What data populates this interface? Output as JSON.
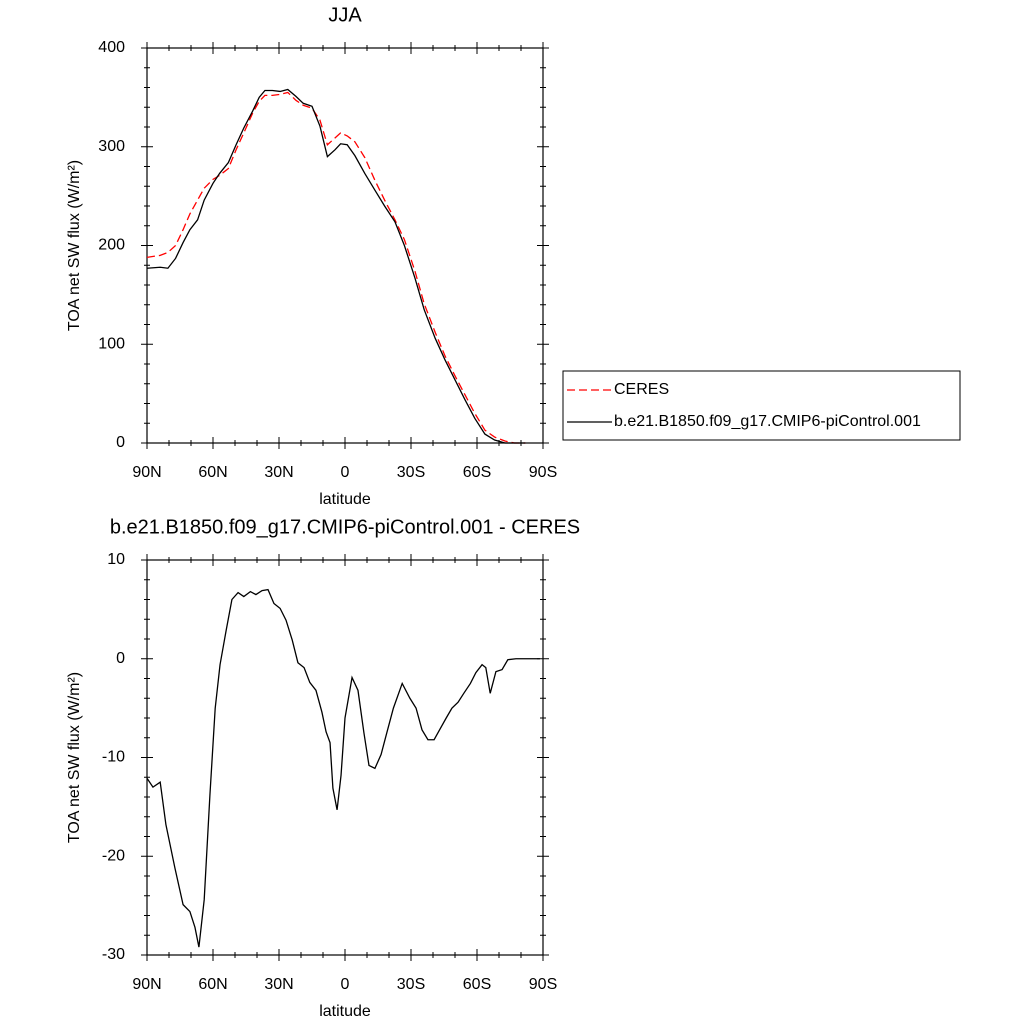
{
  "chart_data": [
    {
      "type": "line",
      "title": "JJA",
      "xlabel": "latitude",
      "ylabel": "TOA net SW flux (W/m²)",
      "xlim": [
        90,
        -90
      ],
      "xticks": [
        {
          "value": 90,
          "label": "90N"
        },
        {
          "value": 60,
          "label": "60N"
        },
        {
          "value": 30,
          "label": "30N"
        },
        0,
        {
          "value": -30,
          "label": "30S"
        },
        {
          "value": -60,
          "label": "60S"
        },
        {
          "value": -90,
          "label": "90S"
        }
      ],
      "ylim": [
        0,
        400
      ],
      "yticks": [
        0,
        100,
        200,
        300,
        400
      ],
      "legend": "right",
      "x": [
        90,
        84,
        80.5,
        77,
        73.6,
        70.5,
        67,
        64,
        60,
        57,
        53,
        49.5,
        46,
        42,
        39,
        36.4,
        33,
        29.5,
        26,
        22.3,
        19,
        15,
        11.4,
        8,
        4.5,
        2,
        -1,
        -4.5,
        -9,
        -13.6,
        -18,
        -22.7,
        -27,
        -31.8,
        -36,
        -41,
        -45.5,
        -50,
        -54.5,
        -59,
        -63.6,
        -68,
        -72.7,
        -77,
        -82
      ],
      "series": [
        {
          "name": "CERES",
          "color": "#ff0000",
          "dashed": true,
          "values": [
            188,
            190,
            193,
            200,
            216,
            232,
            246,
            258,
            267,
            271,
            278,
            297,
            314,
            334,
            346,
            352,
            352,
            353,
            355,
            347,
            342,
            339,
            327,
            302,
            309,
            314,
            311,
            305,
            289,
            266,
            246,
            226,
            206,
            174,
            141,
            112,
            88,
            68,
            49,
            30,
            13,
            6,
            2,
            0,
            0
          ]
        },
        {
          "name": "b.e21.B1850.f09_g17.CMIP6-piControl.001",
          "color": "#000000",
          "dashed": false,
          "values": [
            177,
            178,
            177,
            187,
            203,
            216,
            226,
            246,
            263,
            273,
            284,
            302,
            319,
            336,
            350,
            357,
            357,
            356,
            358,
            351,
            344,
            341,
            321,
            290,
            297,
            303,
            302,
            291,
            273,
            256,
            240,
            224,
            200,
            167,
            135,
            106,
            84,
            64,
            44,
            25,
            9,
            3,
            0,
            0,
            0
          ]
        }
      ]
    },
    {
      "type": "line",
      "title": "b.e21.B1850.f09_g17.CMIP6-piControl.001 - CERES",
      "xlabel": "latitude",
      "ylabel": "TOA net SW flux (W/m²)",
      "xlim": [
        90,
        -90
      ],
      "xticks": [
        {
          "value": 90,
          "label": "90N"
        },
        {
          "value": 60,
          "label": "60N"
        },
        {
          "value": 30,
          "label": "30N"
        },
        0,
        {
          "value": -30,
          "label": "30S"
        },
        {
          "value": -60,
          "label": "60S"
        },
        {
          "value": -90,
          "label": "90S"
        }
      ],
      "ylim": [
        -30,
        10
      ],
      "yticks": [
        -30,
        -20,
        -10,
        0,
        10
      ],
      "x": [
        90,
        87.3,
        84,
        81.4,
        77.3,
        73.6,
        70.5,
        68.2,
        66.4,
        64,
        61.4,
        59,
        56.8,
        54,
        51.4,
        48.6,
        46,
        43,
        40.5,
        37.7,
        35,
        32.3,
        29.5,
        26.8,
        24,
        21.4,
        18.6,
        16,
        13.2,
        10.5,
        8.6,
        6.8,
        5.5,
        3.6,
        1.8,
        0,
        -3.2,
        -5.9,
        -8.6,
        -10.9,
        -13.6,
        -16.4,
        -19,
        -22,
        -26,
        -29.5,
        -32.3,
        -35,
        -37.7,
        -40.5,
        -43,
        -46,
        -48.6,
        -51.4,
        -54,
        -57,
        -59.5,
        -62.3,
        -64,
        -66,
        -68.6,
        -71.4,
        -74,
        -77.7,
        -82.3,
        -88.6
      ],
      "series": [
        {
          "color": "#000000",
          "dashed": false,
          "values": [
            -12.1,
            -13,
            -12.5,
            -16.8,
            -21.2,
            -24.9,
            -25.6,
            -27.2,
            -29.2,
            -24.4,
            -13.8,
            -5,
            -0.6,
            2.9,
            6,
            6.7,
            6.3,
            6.8,
            6.5,
            6.9,
            7,
            5.6,
            5.1,
            3.9,
            1.9,
            -0.4,
            -0.9,
            -2.4,
            -3.2,
            -5.4,
            -7.4,
            -8.5,
            -13.1,
            -15.3,
            -11.8,
            -6,
            -1.9,
            -3.2,
            -7.5,
            -10.8,
            -11.1,
            -9.7,
            -7.5,
            -5,
            -2.5,
            -4,
            -5,
            -7.2,
            -8.2,
            -8.2,
            -7.2,
            -6,
            -5,
            -4.4,
            -3.5,
            -2.5,
            -1.4,
            -0.6,
            -0.9,
            -3.5,
            -1.3,
            -1.1,
            -0.1,
            0,
            0,
            0
          ]
        }
      ]
    }
  ]
}
